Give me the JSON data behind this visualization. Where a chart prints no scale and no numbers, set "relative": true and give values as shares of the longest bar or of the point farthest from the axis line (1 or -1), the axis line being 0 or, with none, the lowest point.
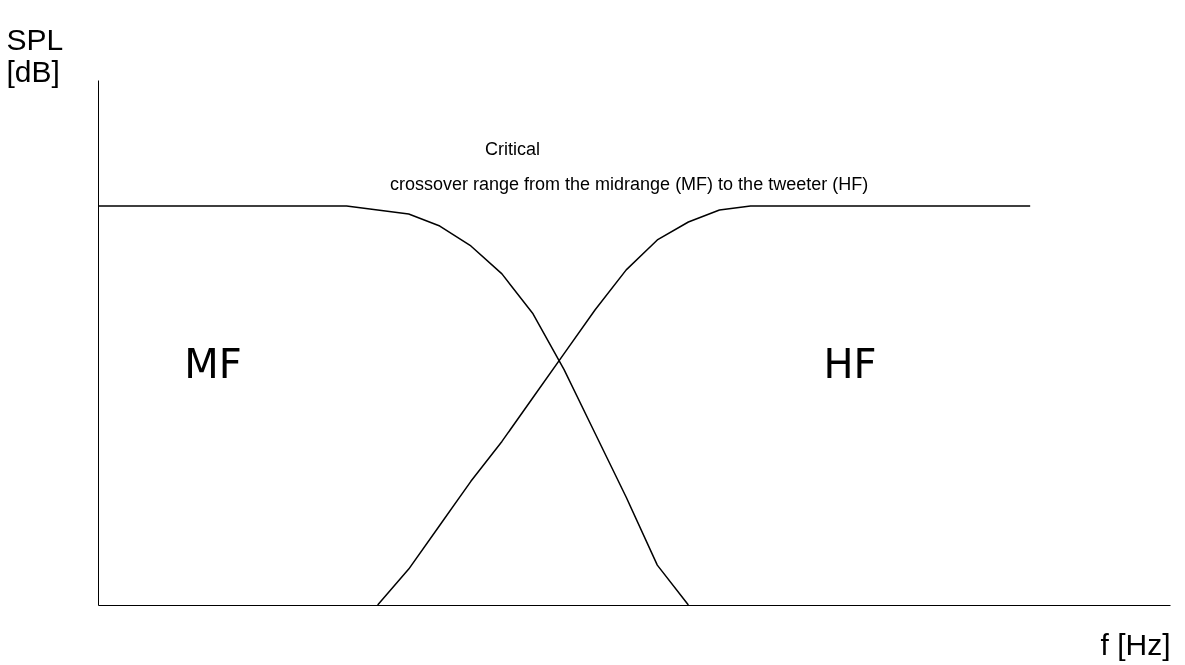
{
  "chart_data": {
    "type": "line",
    "relative": true,
    "xlabel": "f [Hz]",
    "ylabel": "SPL [dB]",
    "annotations": [
      "Critical\ncrossover range from the midrange (MF) to the tweeter (HF)",
      "MF",
      "HF"
    ],
    "categories": [
      null,
      null,
      null,
      null,
      null,
      null,
      null,
      null,
      null,
      null,
      null,
      null,
      null,
      null,
      null,
      null,
      null,
      null,
      null,
      null,
      null,
      null,
      null,
      null,
      null,
      null,
      null,
      null,
      null,
      null,
      null
    ],
    "series": [
      {
        "color": "#000000",
        "values": [
          1,
          1,
          1,
          1,
          1,
          1,
          1,
          1,
          1,
          0.99,
          0.98,
          0.95,
          0.9,
          0.83,
          0.73,
          0.59,
          0.43,
          0.27,
          0.1,
          0,
          null,
          null,
          null,
          null,
          null,
          null,
          null,
          null,
          null,
          null,
          null
        ]
      },
      {
        "color": "#000000",
        "values": [
          null,
          null,
          null,
          null,
          null,
          null,
          null,
          null,
          null,
          0,
          0.09,
          0.2,
          0.31,
          0.41,
          0.52,
          0.63,
          0.74,
          0.84,
          0.915,
          0.96,
          0.99,
          1,
          1,
          1,
          1,
          1,
          1,
          1,
          1,
          1,
          1
        ]
      }
    ],
    "grid": false,
    "marker": "none",
    "line_style": "solid"
  }
}
